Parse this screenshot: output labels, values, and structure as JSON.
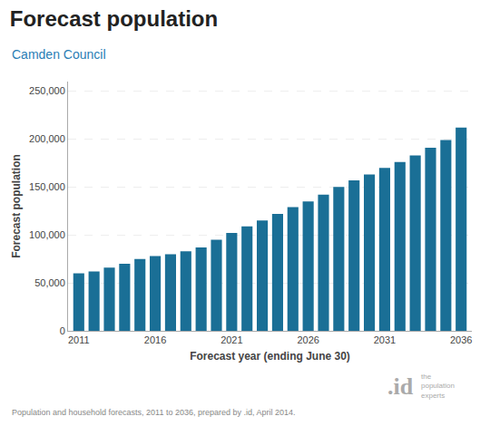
{
  "chart_data": {
    "type": "bar",
    "title": "Forecast population",
    "subtitle": "Camden Council",
    "x_label": "Forecast year (ending June 30)",
    "y_label": "Forecast population",
    "annotations": [
      "Population and household forecasts, 2011 to 2036, prepared by .id, April 2014.",
      ".id",
      "the\npopulation\nexperts"
    ],
    "x": [
      2011,
      2012,
      2013,
      2014,
      2015,
      2016,
      2017,
      2018,
      2019,
      2020,
      2021,
      2022,
      2023,
      2024,
      2025,
      2026,
      2027,
      2028,
      2029,
      2030,
      2031,
      2032,
      2033,
      2034,
      2035,
      2036
    ],
    "values": [
      60000,
      62000,
      66000,
      70000,
      75000,
      78000,
      80000,
      83000,
      87000,
      95000,
      102000,
      109000,
      115000,
      122000,
      129000,
      135000,
      142000,
      150000,
      157000,
      163000,
      170000,
      176000,
      183000,
      191000,
      199000,
      212000
    ],
    "color": "#1a6f96",
    "xlim": [
      2010.3,
      2036.7
    ],
    "xticks": [
      2011,
      2016,
      2021,
      2026,
      2031,
      2036
    ],
    "ylim": [
      0,
      260000
    ],
    "yticks": [
      0,
      {
        "value": 50000,
        "label": "50,000"
      },
      {
        "value": 100000,
        "label": "100,000"
      },
      {
        "value": 150000,
        "label": "150,000"
      },
      {
        "value": 200000,
        "label": "200,000"
      },
      {
        "value": 250000,
        "label": "250,000"
      }
    ],
    "grid": true
  }
}
